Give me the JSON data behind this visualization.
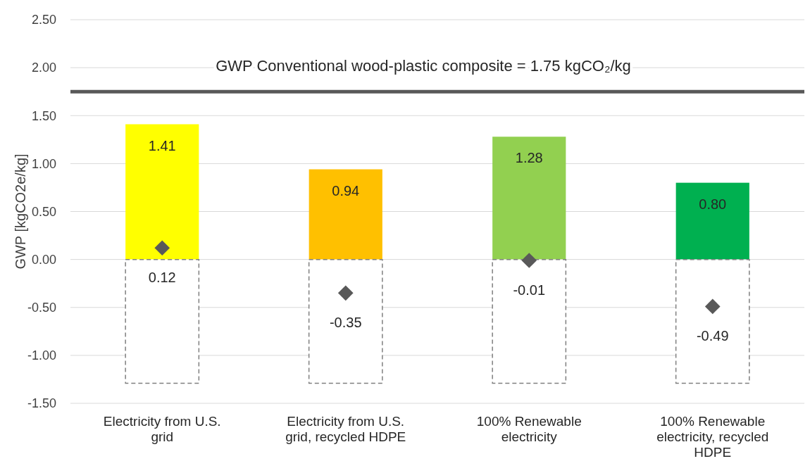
{
  "chart_data": {
    "type": "bar",
    "ylabel": "GWP [kgCO2e/kg]",
    "categories": [
      "Electricity from U.S. grid",
      "Electricity from U.S. grid, recycled HDPE",
      "100% Renewable electricity",
      "100% Renewable electricity, recycled HDPE"
    ],
    "stacked": true,
    "series": [
      {
        "colors": [
          "#ffff00",
          "#ffc000",
          "#92d050",
          "#00b050"
        ],
        "values": [
          1.41,
          0.94,
          1.28,
          0.8
        ],
        "value_labels": [
          "1.41",
          "0.94",
          "1.28",
          "0.80"
        ]
      },
      {
        "color": "#ffffff",
        "line_style": "dashed",
        "values": [
          -1.29,
          -1.29,
          -1.29,
          -1.29
        ]
      },
      {
        "type": "scatter",
        "color": "#595959",
        "marker": "diamond",
        "x": [
          "Electricity from U.S. grid",
          "Electricity from U.S. grid, recycled HDPE",
          "100% Renewable electricity",
          "100% Renewable electricity, recycled HDPE"
        ],
        "values": [
          0.12,
          -0.35,
          -0.01,
          -0.49
        ],
        "value_labels": [
          "0.12",
          "-0.35",
          "-0.01",
          "-0.49"
        ]
      }
    ],
    "ylim": [
      -1.5,
      2.5
    ],
    "yticks": [
      {
        "value": -1.5,
        "label": "-1.50"
      },
      {
        "value": -1,
        "label": "-1.00"
      },
      {
        "value": -0.5,
        "label": "-0.50"
      },
      {
        "value": 0,
        "label": "0.00"
      },
      {
        "value": 0.5,
        "label": "0.50"
      },
      {
        "value": 1,
        "label": "1.00"
      },
      {
        "value": 1.5,
        "label": "1.50"
      },
      {
        "value": 2,
        "label": "2.00"
      },
      {
        "value": 2.5,
        "label": "2.50"
      }
    ],
    "grid": "y",
    "ref_lines": [
      {
        "axis": "y",
        "value": 1.75,
        "label": "GWP Conventional wood-plastic composite = 1.75 kgCO₂/kg",
        "color": "#595959"
      }
    ]
  }
}
